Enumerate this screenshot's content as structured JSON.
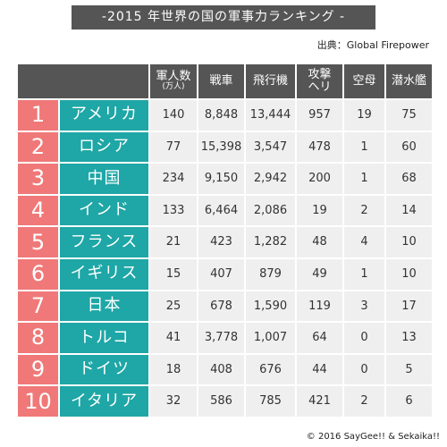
{
  "title": "-2015 年世界の国の軍事力ランキング -",
  "source": "出典：Global Firepower",
  "table": {
    "header": [
      [
        "軍人数",
        "(万人)"
      ],
      [
        "戦車"
      ],
      [
        "飛行機"
      ],
      [
        "攻撃",
        "ヘリ"
      ],
      [
        "空母"
      ],
      [
        "潜水艦"
      ]
    ],
    "rows": [
      [
        "1",
        "アメリカ",
        "140",
        "8,848",
        "13,444",
        "957",
        "19",
        "75"
      ],
      [
        "2",
        "ロシア",
        "77",
        "15,398",
        "3,547",
        "478",
        "1",
        "60"
      ],
      [
        "3",
        "中国",
        "234",
        "9,150",
        "2,942",
        "200",
        "1",
        "68"
      ],
      [
        "4",
        "インド",
        "133",
        "6,464",
        "2,086",
        "19",
        "2",
        "14"
      ],
      [
        "5",
        "フランス",
        "21",
        "423",
        "1,282",
        "48",
        "4",
        "10"
      ],
      [
        "6",
        "イギリス",
        "15",
        "407",
        "879",
        "49",
        "1",
        "10"
      ],
      [
        "7",
        "日本",
        "25",
        "678",
        "1,590",
        "119",
        "3",
        "17"
      ],
      [
        "8",
        "トルコ",
        "41",
        "3,778",
        "1,007",
        "64",
        "0",
        "13"
      ],
      [
        "9",
        "ドイツ",
        "18",
        "408",
        "676",
        "44",
        "0",
        "5"
      ],
      [
        "10",
        "イタリア",
        "32",
        "586",
        "785",
        "421",
        "2",
        "6"
      ]
    ]
  },
  "copyright": "© 2016 SayGee!! & Sekaika!!"
}
